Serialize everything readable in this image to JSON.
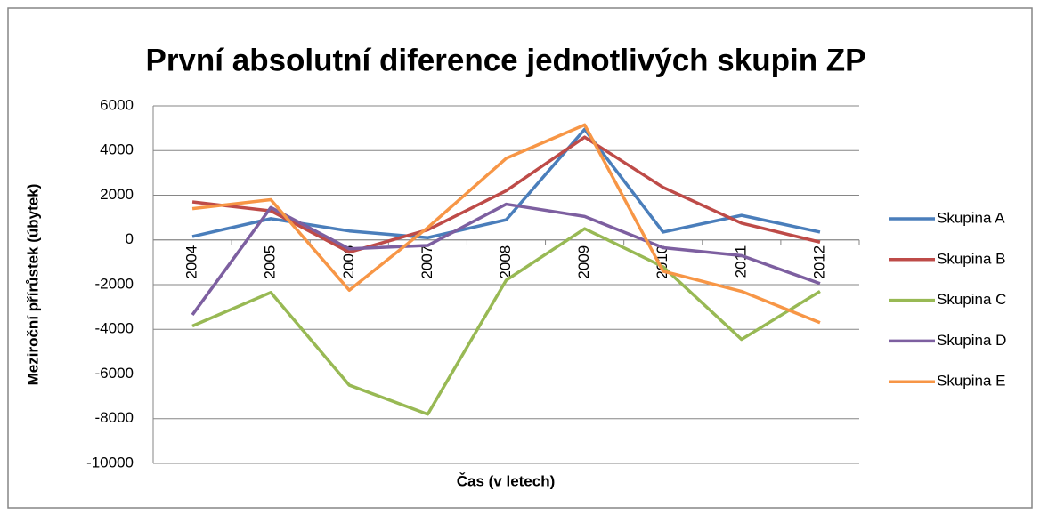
{
  "chart_data": {
    "type": "line",
    "title": "První absolutní diference jednotlivých skupin ZP",
    "y_label": "Meziroční přírůstek (úbytek)",
    "x_label": "Čas (v letech)",
    "categories": [
      "2004",
      "2005",
      "2006",
      "2007",
      "2008",
      "2009",
      "2010",
      "2011",
      "2012"
    ],
    "series": [
      {
        "name": "Skupina A",
        "color": "#4a7ebb",
        "values": [
          150,
          950,
          400,
          100,
          900,
          4950,
          350,
          1100,
          350
        ]
      },
      {
        "name": "Skupina B",
        "color": "#be4b48",
        "values": [
          1700,
          1300,
          -550,
          450,
          2200,
          4600,
          2350,
          750,
          -100
        ]
      },
      {
        "name": "Skupina C",
        "color": "#98b954",
        "values": [
          -3850,
          -2350,
          -6500,
          -7800,
          -1800,
          500,
          -1200,
          -4450,
          -2300
        ]
      },
      {
        "name": "Skupina D",
        "color": "#7d5fa0",
        "values": [
          -3350,
          1450,
          -400,
          -250,
          1600,
          1050,
          -350,
          -700,
          -1950
        ]
      },
      {
        "name": "Skupina E",
        "color": "#f79646",
        "values": [
          1400,
          1800,
          -2250,
          550,
          3650,
          5150,
          -1400,
          -2300,
          -3700
        ]
      }
    ],
    "ylim": [
      -10000,
      6000
    ],
    "yticks": [
      -10000,
      -8000,
      -6000,
      -4000,
      -2000,
      0,
      2000,
      4000,
      6000
    ],
    "grid": true,
    "legend": "right"
  }
}
